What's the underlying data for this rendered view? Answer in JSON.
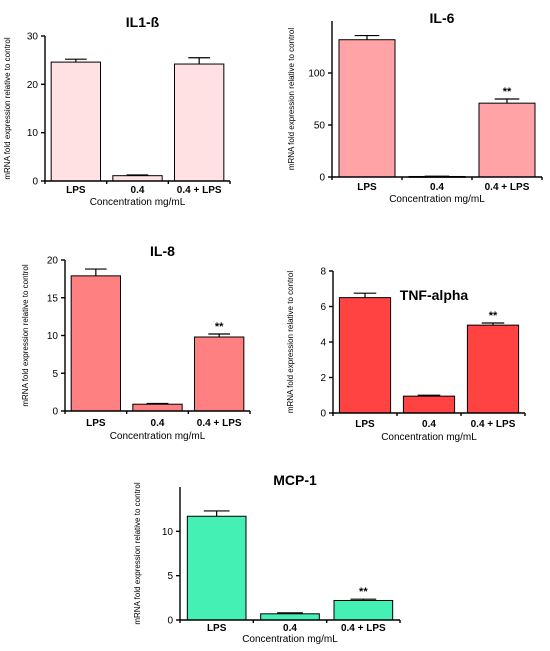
{
  "chart_data": [
    {
      "type": "bar",
      "title": "IL1-ß",
      "categories": [
        "LPS",
        "0.4",
        "0.4 + LPS"
      ],
      "values": [
        24.6,
        1.1,
        24.2
      ],
      "errors": [
        0.6,
        0.15,
        1.3
      ],
      "significance": [
        "",
        "",
        ""
      ],
      "xlabel": "Concentration mg/mL",
      "ylabel": "mRNA fold expression relative to control",
      "ylim": [
        0,
        30
      ],
      "yticks": [
        0,
        10,
        20,
        30
      ],
      "color": "#ffe0e3"
    },
    {
      "type": "bar",
      "title": "IL-6",
      "categories": [
        "LPS",
        "0.4",
        "0.4 + LPS"
      ],
      "values": [
        132,
        0.5,
        71
      ],
      "errors": [
        4,
        0.3,
        4
      ],
      "significance": [
        "",
        "",
        "**"
      ],
      "xlabel": "Concentration mg/mL",
      "ylabel": "mRNA fold expression relative to control",
      "ylim": [
        0,
        150
      ],
      "yticks": [
        0,
        50,
        100
      ],
      "color": "#ffa3a6"
    },
    {
      "type": "bar",
      "title": "IL-8",
      "categories": [
        "LPS",
        "0.4",
        "0.4 + LPS"
      ],
      "values": [
        17.9,
        0.9,
        9.8
      ],
      "errors": [
        0.9,
        0.1,
        0.4
      ],
      "significance": [
        "",
        "",
        "**"
      ],
      "xlabel": "Concentration mg/mL",
      "ylabel": "mRNA fold expression relative to control",
      "ylim": [
        0,
        20
      ],
      "yticks": [
        0,
        5,
        10,
        15,
        20
      ],
      "color": "#ff8080"
    },
    {
      "type": "bar",
      "title": "TNF-alpha",
      "categories": [
        "LPS",
        "0.4",
        "0.4 + LPS"
      ],
      "values": [
        6.5,
        0.95,
        4.95
      ],
      "errors": [
        0.25,
        0.05,
        0.12
      ],
      "significance": [
        "",
        "",
        "**"
      ],
      "xlabel": "Concentration mg/mL",
      "ylabel": "mRNA fold expression relative to control",
      "ylim": [
        0,
        8
      ],
      "yticks": [
        0,
        2,
        4,
        6,
        8
      ],
      "color": "#ff4242"
    },
    {
      "type": "bar",
      "title": "MCP-1",
      "categories": [
        "LPS",
        "0.4",
        "0.4 + LPS"
      ],
      "values": [
        11.7,
        0.7,
        2.2
      ],
      "errors": [
        0.6,
        0.1,
        0.15
      ],
      "significance": [
        "",
        "",
        "**"
      ],
      "xlabel": "Concentration mg/mL",
      "ylabel": "mRNA fold expression relative to control",
      "ylim": [
        0,
        15
      ],
      "yticks": [
        0,
        5,
        10
      ],
      "color": "#45f0b5"
    }
  ]
}
